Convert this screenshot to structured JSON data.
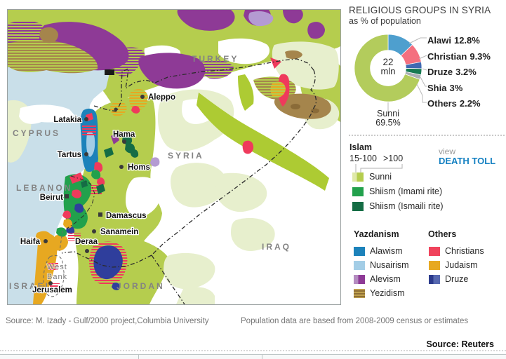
{
  "panel": {
    "title": "RELIGIOUS GROUPS IN SYRIA",
    "subtitle": "as % of population",
    "center_value": "22",
    "center_unit": "mln",
    "sunni_label": "Sunni",
    "sunni_value": "69.5%",
    "view_label": "view",
    "death_toll_label": "DEATH TOLL",
    "link_color": "#1581c2"
  },
  "chart_data": {
    "type": "pie",
    "title": "RELIGIOUS GROUPS IN SYRIA",
    "subtitle": "as % of population",
    "center_label": "22 mln",
    "start_angle_deg": -90,
    "direction": "clockwise",
    "inner_radius_ratio": 0.53,
    "slices": [
      {
        "label": "Alawi",
        "value": 12.8,
        "display": "12.8%",
        "color": "#4e9fce"
      },
      {
        "label": "Christian",
        "value": 9.3,
        "display": "9.3%",
        "color": "#f4707f"
      },
      {
        "label": "Druze",
        "value": 3.2,
        "display": "3.2%",
        "color": "#4169b2"
      },
      {
        "label": "Shia",
        "value": 3.0,
        "display": "3%",
        "color": "#177a52"
      },
      {
        "label": "Others",
        "value": 2.2,
        "display": "2.2%",
        "color": "#aab0b3"
      },
      {
        "label": "Sunni",
        "value": 69.5,
        "display": "69.5%",
        "color": "#b3cc5c"
      }
    ]
  },
  "legend": {
    "islam": {
      "header": "Islam",
      "scale_low": "15-100",
      "scale_high": ">100",
      "items": [
        {
          "label": "Sunni",
          "colors": [
            "#dfe9a8",
            "#b5cd4e"
          ]
        },
        {
          "label": "Shiism (Imami rite)",
          "colors": [
            "#22a14c"
          ]
        },
        {
          "label": "Shiism (Ismaili rite)",
          "colors": [
            "#156d45"
          ]
        }
      ]
    },
    "yazdanism": {
      "header": "Yazdanism",
      "items": [
        {
          "label": "Alawism",
          "colors": [
            "#1c82ba"
          ]
        },
        {
          "label": "Nusairism",
          "colors": [
            "#a3cde6"
          ]
        },
        {
          "label": "Alevism",
          "colors": [
            "#b48cc0",
            "#8e3a96"
          ]
        },
        {
          "label": "Yezidism",
          "colors": [
            "#bfa14f",
            "#8f6f35"
          ]
        }
      ]
    },
    "others": {
      "header": "Others",
      "items": [
        {
          "label": "Christians",
          "colors": [
            "#f0435c"
          ]
        },
        {
          "label": "Judaism",
          "colors": [
            "#e7a821"
          ]
        },
        {
          "label": "Druze",
          "colors": [
            "#2b3a8c",
            "#5668b0"
          ]
        }
      ]
    }
  },
  "map": {
    "countries": [
      "TURKEY",
      "CYPRUS",
      "SYRIA",
      "LEBANON",
      "ISRAEL",
      "JORDAN",
      "IRAQ"
    ],
    "west_bank": {
      "line1": "West",
      "line2": "Bank"
    },
    "cities": [
      {
        "label": "Aleppo"
      },
      {
        "label": "Latakia"
      },
      {
        "label": "Hama"
      },
      {
        "label": "Tartus"
      },
      {
        "label": "Homs"
      },
      {
        "label": "Beirut"
      },
      {
        "label": "Damascus"
      },
      {
        "label": "Sanamein"
      },
      {
        "label": "Haifa"
      },
      {
        "label": "Deraa"
      },
      {
        "label": "Jerusalem"
      }
    ]
  },
  "footer": {
    "source_left": "Source: M. Izady - Gulf/2000 project,Columbia University",
    "note": "Population data are based from 2008-2009 census or estimates",
    "source_right": "Source: Reuters"
  }
}
